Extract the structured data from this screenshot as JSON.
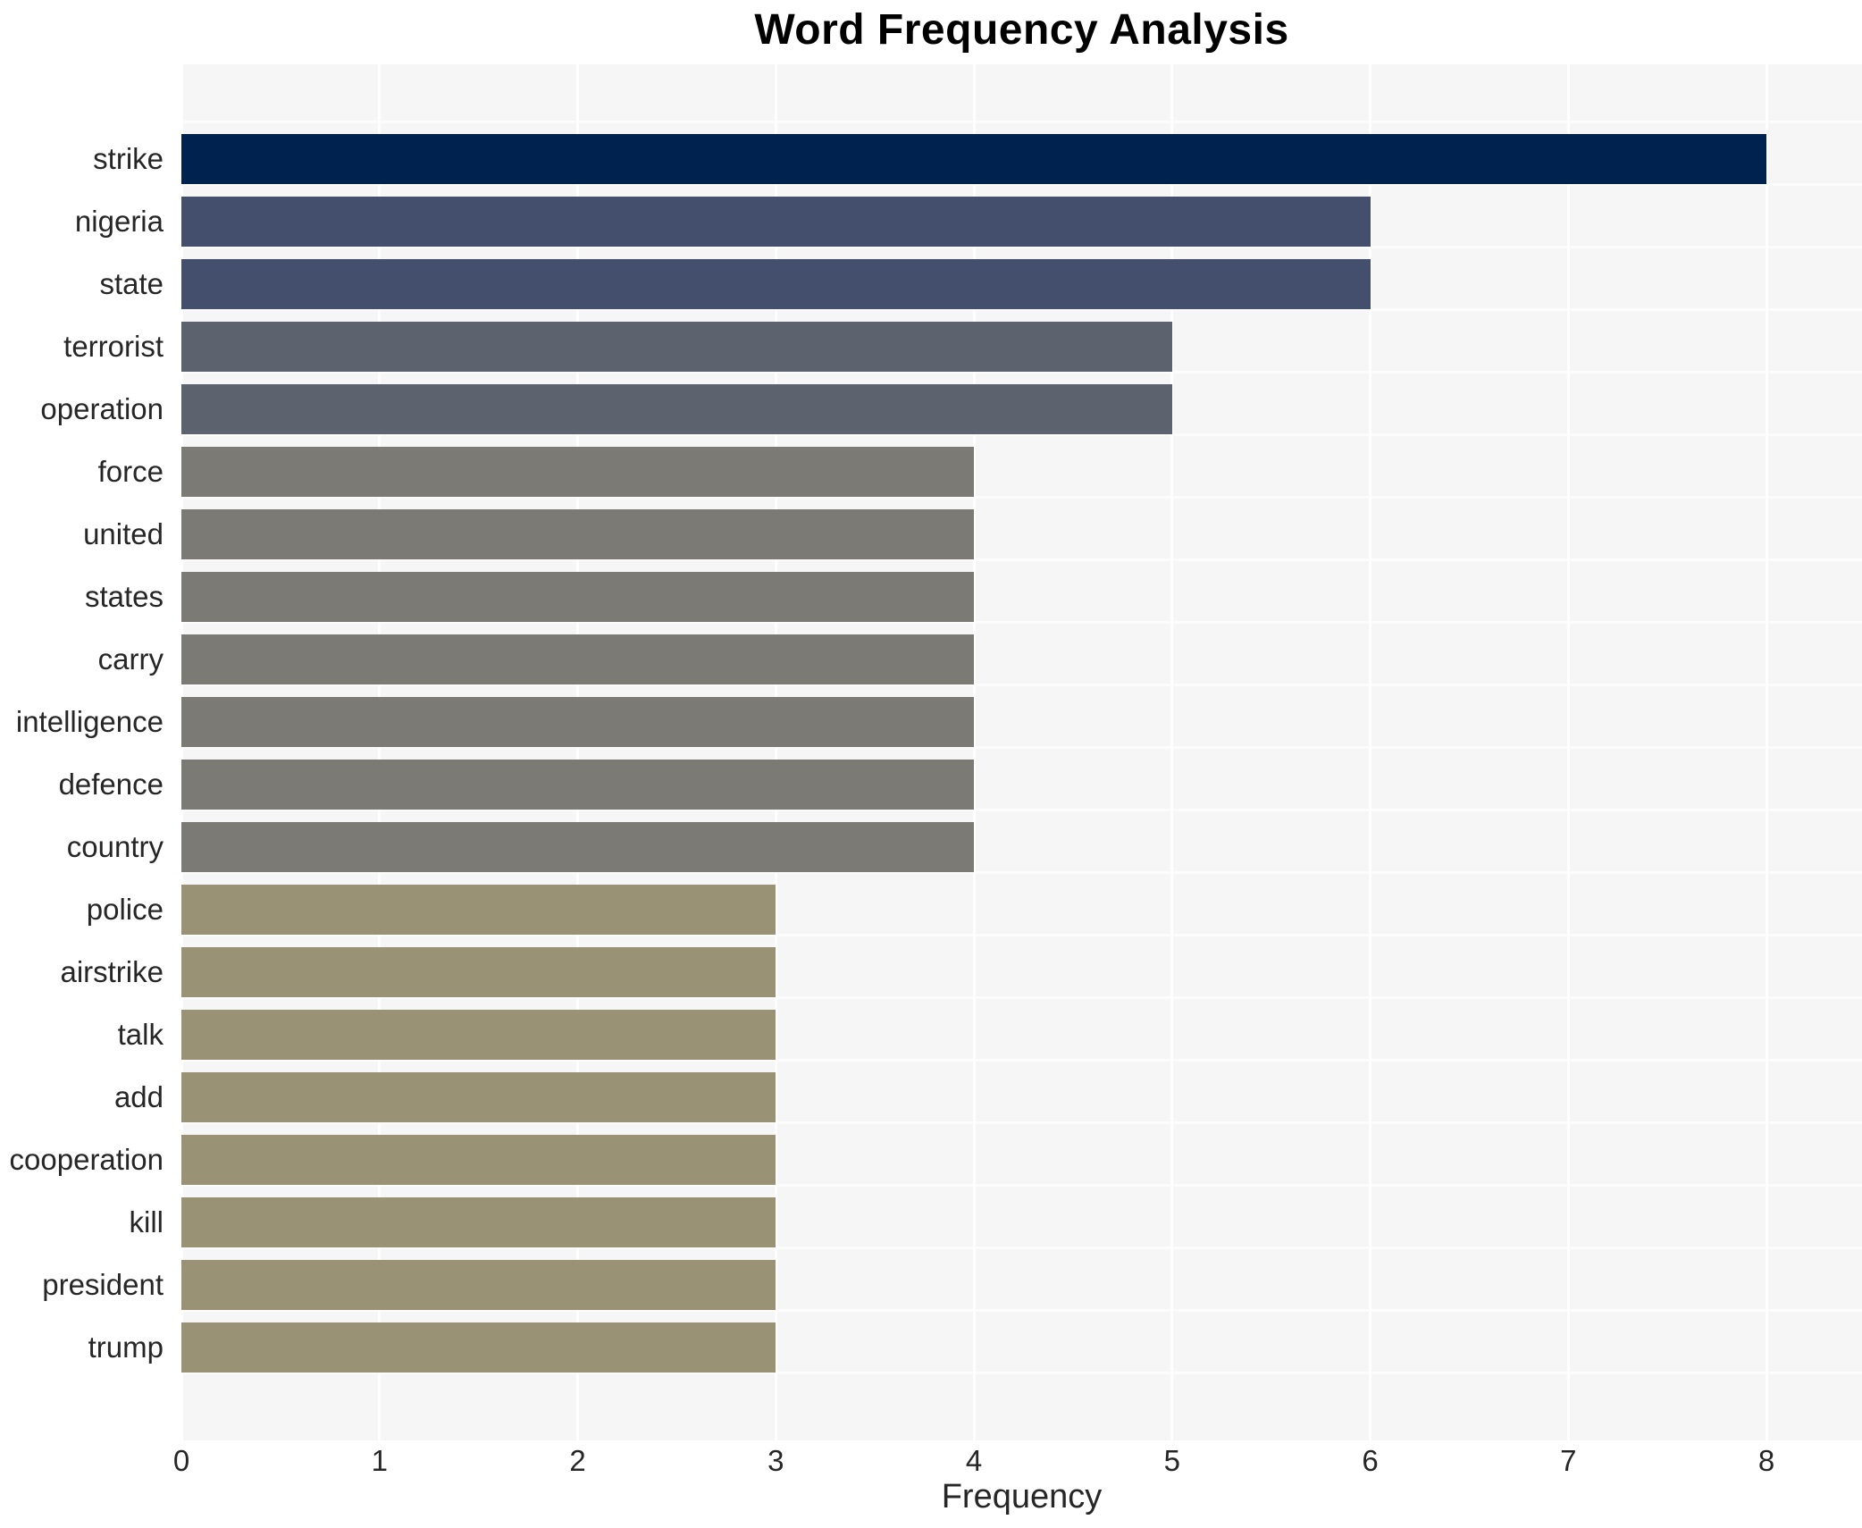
{
  "chart_data": {
    "type": "bar",
    "orientation": "horizontal",
    "title": "Word Frequency Analysis",
    "xlabel": "Frequency",
    "ylabel": "",
    "categories": [
      "strike",
      "nigeria",
      "state",
      "terrorist",
      "operation",
      "force",
      "united",
      "states",
      "carry",
      "intelligence",
      "defence",
      "country",
      "police",
      "airstrike",
      "talk",
      "add",
      "cooperation",
      "kill",
      "president",
      "trump"
    ],
    "values": [
      8,
      6,
      6,
      5,
      5,
      4,
      4,
      4,
      4,
      4,
      4,
      4,
      3,
      3,
      3,
      3,
      3,
      3,
      3,
      3
    ],
    "bar_colors": [
      "#00224e",
      "#444f6d",
      "#444f6d",
      "#5c626e",
      "#5c626e",
      "#7b7a75",
      "#7b7a75",
      "#7b7a75",
      "#7b7a75",
      "#7b7a75",
      "#7b7a75",
      "#7b7a75",
      "#9a9274",
      "#9a9274",
      "#9a9274",
      "#9a9274",
      "#9a9274",
      "#9a9274",
      "#9a9274",
      "#9a9274"
    ],
    "xticks": [
      0,
      1,
      2,
      3,
      4,
      5,
      6,
      7,
      8
    ],
    "xlim": [
      0,
      8.48
    ],
    "grid": true,
    "legend": false,
    "colors": {
      "plot_background": "#f6f6f7",
      "figure_background": "#ffffff",
      "gridline": "#ffffff",
      "tick_text": "#262626",
      "title_text": "#000000"
    }
  }
}
